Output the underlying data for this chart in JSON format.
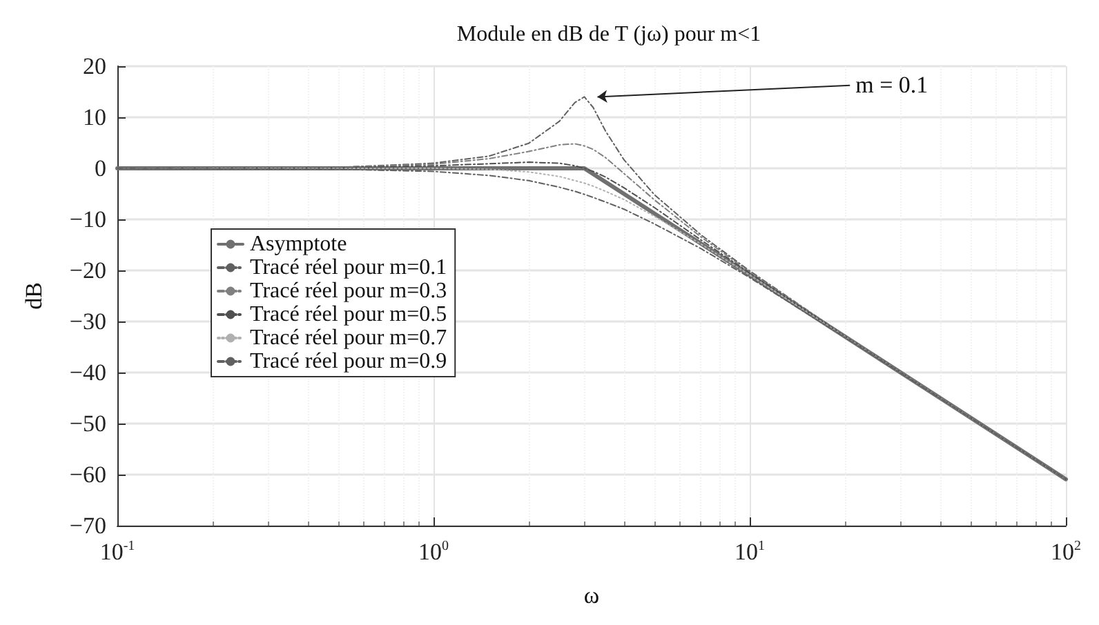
{
  "chart_data": {
    "type": "line",
    "title": "Module en dB de T (jω) pour m<1",
    "xlabel": "ω",
    "ylabel": "dB",
    "log": "x",
    "xlim": [
      0.1,
      100
    ],
    "xticks": [
      {
        "value": 0.1,
        "label": "10$^{-1}$"
      },
      {
        "value": 1,
        "label": "10$^{0}$"
      },
      {
        "value": 10,
        "label": "10$^{1}$"
      },
      {
        "value": 100,
        "label": "10$^{2}$"
      }
    ],
    "ylim": [
      -70,
      20
    ],
    "yticks": [
      -70,
      -60,
      -50,
      -40,
      -30,
      -20,
      -10,
      0,
      10,
      20
    ],
    "grid": true,
    "legend": "left",
    "marker": "none",
    "x": [
      0.1,
      0.5,
      1,
      1.5,
      2,
      2.5,
      2.8,
      3,
      3.2,
      3.5,
      4,
      5,
      7,
      10,
      20,
      50,
      100
    ],
    "series": [
      {
        "name": "Asymptote",
        "color": "#707070",
        "line_style": "solid",
        "x": [
          0.1,
          3,
          100
        ],
        "values": [
          0,
          0,
          -60.9
        ]
      },
      {
        "name": "Tracé réel pour m=0.1",
        "color": "#606060",
        "line_style": "dashed",
        "values": [
          0,
          0.2,
          1.0,
          2.4,
          4.9,
          9.2,
          12.9,
          14.0,
          11.9,
          7.3,
          1.7,
          -5.2,
          -13.0,
          -20.1,
          -32.8,
          -48.8,
          -60.9
        ]
      },
      {
        "name": "Tracé réel pour m=0.3",
        "color": "#808080",
        "line_style": "dashed",
        "values": [
          0,
          0.2,
          0.8,
          1.9,
          3.3,
          4.6,
          4.8,
          4.4,
          3.7,
          2.1,
          -1.0,
          -6.2,
          -13.4,
          -20.3,
          -32.8,
          -48.8,
          -60.9
        ]
      },
      {
        "name": "Tracé réel pour m=0.5",
        "color": "#505050",
        "line_style": "dashed",
        "values": [
          0,
          0.1,
          0.5,
          0.9,
          1.2,
          1.0,
          0.5,
          0,
          -0.6,
          -1.7,
          -3.8,
          -7.7,
          -14.0,
          -20.5,
          -32.9,
          -48.9,
          -60.9
        ]
      },
      {
        "name": "Tracé réel pour m=0.7",
        "color": "#b0b0b0",
        "line_style": "dotted",
        "values": [
          0,
          0,
          0,
          -0.2,
          -0.7,
          -1.6,
          -2.4,
          -2.9,
          -3.5,
          -4.5,
          -6.1,
          -9.4,
          -14.8,
          -20.9,
          -33.0,
          -48.9,
          -60.9
        ]
      },
      {
        "name": "Tracé réel pour m=0.9",
        "color": "#606060",
        "line_style": "dashed",
        "values": [
          0,
          -0.2,
          -0.6,
          -1.4,
          -2.4,
          -3.7,
          -4.5,
          -5.1,
          -5.7,
          -6.6,
          -8.0,
          -10.9,
          -15.7,
          -21.4,
          -33.1,
          -48.9,
          -60.9
        ]
      }
    ],
    "annotations": [
      {
        "text": "m = 0.1",
        "x": 3,
        "y": 14.0
      }
    ]
  }
}
